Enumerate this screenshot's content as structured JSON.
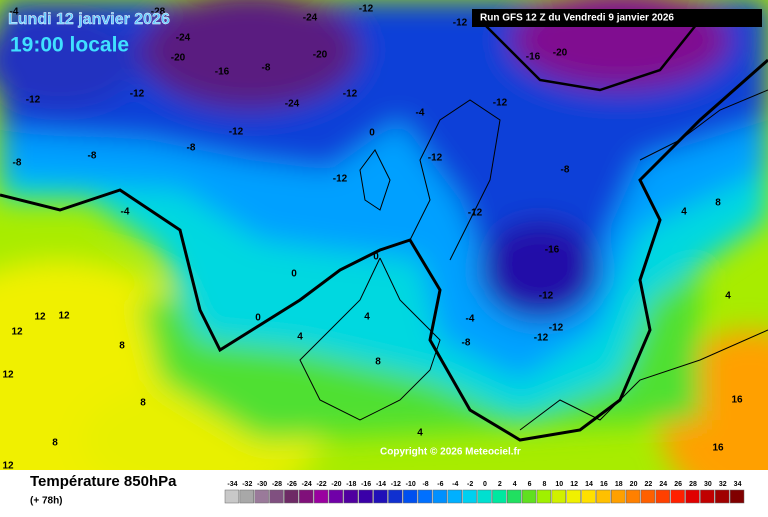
{
  "header": {
    "date": "Lundi 12 janvier 2026",
    "time": "19:00 locale",
    "run": "Run GFS 12 Z du Vendredi 9 janvier 2026"
  },
  "footer": {
    "title": "Température 850hPa",
    "lead": "(+ 78h)",
    "copyright": "Copyright © 2026 Meteociel.fr"
  },
  "legend": {
    "values": [
      -34,
      -32,
      -30,
      -28,
      -26,
      -24,
      -22,
      -20,
      -18,
      -16,
      -14,
      -12,
      -10,
      -8,
      -6,
      -4,
      -2,
      0,
      2,
      4,
      6,
      8,
      10,
      12,
      14,
      16,
      18,
      20,
      22,
      24,
      26,
      28,
      30,
      32,
      34
    ],
    "colors": [
      "#c8c8c8",
      "#a8a8a8",
      "#9a7a9a",
      "#805080",
      "#6e2a66",
      "#80107a",
      "#9a00a0",
      "#7000a8",
      "#5000a0",
      "#3a00a8",
      "#2010b8",
      "#1030d0",
      "#0050f0",
      "#0070ff",
      "#0090ff",
      "#00b0ff",
      "#00d0f0",
      "#00e0d0",
      "#00e8a0",
      "#20e060",
      "#60e020",
      "#a0f000",
      "#d0f000",
      "#f0f000",
      "#ffe000",
      "#ffc000",
      "#ffa000",
      "#ff8000",
      "#ff6000",
      "#ff4000",
      "#ff2000",
      "#e00000",
      "#c00000",
      "#a00000",
      "#800000"
    ]
  },
  "labels": [
    -28,
    -24,
    -20,
    -16,
    -12,
    -12,
    -8,
    -12,
    -8,
    -8,
    -4,
    -12,
    -12,
    -20,
    -16,
    -12,
    -12,
    -8,
    -12,
    -16,
    -12,
    -12,
    -12,
    -8,
    -4,
    0,
    -4,
    -12,
    -12,
    0,
    0,
    0,
    4,
    4,
    8,
    8,
    12,
    12,
    12,
    12,
    8,
    8,
    4,
    4,
    4,
    8,
    16,
    16,
    12,
    -8,
    -20,
    -24,
    -4,
    -24
  ]
}
